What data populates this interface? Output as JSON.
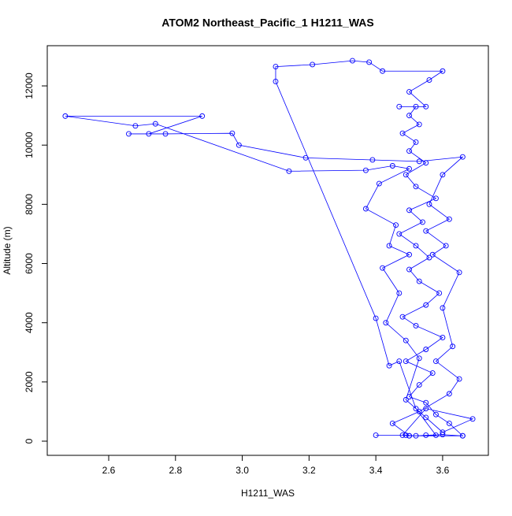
{
  "chart_data": {
    "type": "line",
    "title": "ATOM2 Northeast_Pacific_1 H1211_WAS",
    "x_label": "H1211_WAS",
    "y_label": "Altitude (m)",
    "xlim": [
      2.416,
      3.737
    ],
    "ylim": [
      -479,
      13358
    ],
    "xticks": [
      2.6,
      2.8,
      {
        "value": 3,
        "label": "3.0"
      },
      3.2,
      3.4,
      3.6
    ],
    "yticks": [
      0,
      2000,
      4000,
      6000,
      8000,
      10000,
      12000
    ],
    "series": [
      {
        "color": "#0000ff",
        "x": [
          3.4,
          3.49,
          3.52,
          3.55,
          3.6,
          3.66,
          3.62,
          3.58,
          3.55,
          3.5,
          3.53,
          3.57,
          3.49,
          3.55,
          3.6,
          3.52,
          3.48,
          3.55,
          3.59,
          3.53,
          3.5,
          3.56,
          3.52,
          3.47,
          3.54,
          3.5,
          3.58,
          3.52,
          3.49,
          3.55,
          3.5,
          3.52,
          3.48,
          3.53,
          3.5,
          3.52,
          3.47,
          3.55,
          3.5,
          3.56,
          3.6,
          3.42,
          3.38,
          3.33,
          3.21,
          3.1,
          3.1,
          3.4,
          3.44,
          3.47,
          3.52,
          3.58,
          3.5,
          3.45,
          3.53,
          3.62,
          3.65,
          3.58,
          3.63,
          3.6,
          3.65,
          3.57,
          3.61,
          3.55,
          3.62,
          3.56,
          3.6,
          3.66,
          3.53,
          3.39,
          3.19,
          2.99,
          2.97,
          2.77,
          2.66,
          2.72,
          2.88,
          2.47,
          2.68,
          2.74,
          3.14,
          3.37,
          3.45,
          3.5,
          3.41,
          3.37,
          3.46,
          3.44,
          3.5,
          3.42,
          3.47,
          3.43,
          3.49,
          3.53,
          3.49,
          3.55,
          3.6,
          3.69,
          3.55,
          3.48,
          3.5,
          3.66
        ],
        "values": [
          200,
          200,
          180,
          200,
          220,
          180,
          600,
          900,
          1300,
          1500,
          1900,
          2300,
          2700,
          3100,
          3500,
          3900,
          4200,
          4600,
          5000,
          5400,
          5800,
          6200,
          6600,
          7000,
          7400,
          7800,
          8200,
          8600,
          9000,
          9400,
          9800,
          10100,
          10400,
          10700,
          11000,
          11300,
          11300,
          11300,
          11800,
          12200,
          12500,
          12500,
          12800,
          12850,
          12720,
          12650,
          12150,
          4150,
          2550,
          2700,
          1100,
          200,
          180,
          600,
          1000,
          1600,
          2100,
          2700,
          3200,
          4500,
          5700,
          6300,
          6600,
          7100,
          7500,
          8000,
          9000,
          9600,
          9450,
          9500,
          9570,
          10000,
          10400,
          10380,
          10380,
          10380,
          10980,
          10980,
          10650,
          10720,
          9120,
          9150,
          9300,
          9200,
          8700,
          7850,
          7300,
          6600,
          6300,
          5850,
          5000,
          4000,
          3400,
          2800,
          1400,
          800,
          300,
          750,
          1100,
          200,
          180,
          180
        ]
      }
    ]
  }
}
